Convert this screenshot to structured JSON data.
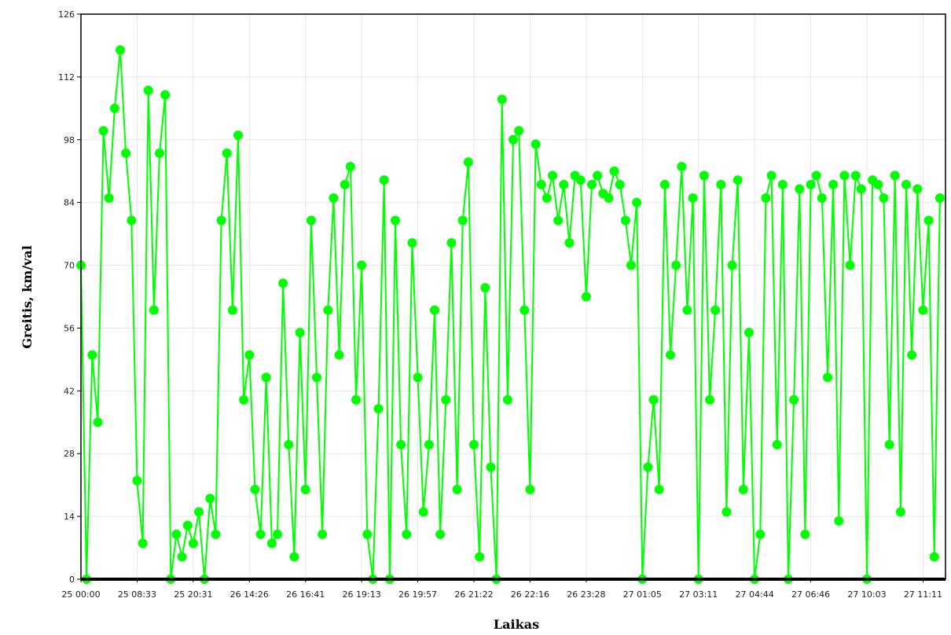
{
  "chart_data": {
    "type": "line",
    "x_label": "Laikas",
    "y_label": "Greitis, km/val",
    "color": "#00ff00",
    "grid": true,
    "ylim": [
      0,
      126
    ],
    "yticks": [
      0,
      14,
      28,
      42,
      56,
      70,
      84,
      98,
      112,
      126
    ],
    "categories": [
      "25 00:00",
      null,
      null,
      null,
      null,
      null,
      null,
      null,
      null,
      null,
      "25 08:33",
      null,
      null,
      null,
      null,
      null,
      null,
      null,
      null,
      null,
      "25 20:31",
      null,
      null,
      null,
      null,
      null,
      null,
      null,
      null,
      null,
      "26 14:26",
      null,
      null,
      null,
      null,
      null,
      null,
      null,
      null,
      null,
      "26 16:41",
      null,
      null,
      null,
      null,
      null,
      null,
      null,
      null,
      null,
      "26 19:13",
      null,
      null,
      null,
      null,
      null,
      null,
      null,
      null,
      null,
      "26 19:57",
      null,
      null,
      null,
      null,
      null,
      null,
      null,
      null,
      null,
      "26 21:22",
      null,
      null,
      null,
      null,
      null,
      null,
      null,
      null,
      null,
      "26 22:16",
      null,
      null,
      null,
      null,
      null,
      null,
      null,
      null,
      null,
      "26 23:28",
      null,
      null,
      null,
      null,
      null,
      null,
      null,
      null,
      null,
      "27 01:05",
      null,
      null,
      null,
      null,
      null,
      null,
      null,
      null,
      null,
      "27 03:11",
      null,
      null,
      null,
      null,
      null,
      null,
      null,
      null,
      null,
      "27 04:44",
      null,
      null,
      null,
      null,
      null,
      null,
      null,
      null,
      null,
      "27 06:46",
      null,
      null,
      null,
      null,
      null,
      null,
      null,
      null,
      null,
      "27 10:03",
      null,
      null,
      null,
      null,
      null,
      null,
      null,
      null,
      null,
      "27 11:11",
      null,
      null,
      null
    ],
    "values": [
      70,
      0,
      50,
      35,
      100,
      85,
      105,
      118,
      95,
      80,
      22,
      8,
      109,
      60,
      95,
      108,
      0,
      10,
      5,
      12,
      8,
      15,
      0,
      18,
      10,
      80,
      95,
      60,
      99,
      40,
      50,
      20,
      10,
      45,
      8,
      10,
      66,
      30,
      5,
      55,
      20,
      80,
      45,
      10,
      60,
      85,
      50,
      88,
      92,
      40,
      70,
      10,
      0,
      38,
      89,
      0,
      80,
      30,
      10,
      75,
      45,
      15,
      30,
      60,
      10,
      40,
      75,
      20,
      80,
      93,
      30,
      5,
      65,
      25,
      0,
      107,
      40,
      98,
      100,
      60,
      20,
      97,
      88,
      85,
      90,
      80,
      88,
      75,
      90,
      89,
      63,
      88,
      90,
      86,
      85,
      91,
      88,
      80,
      70,
      84,
      0,
      25,
      40,
      20,
      88,
      50,
      70,
      92,
      60,
      85,
      0,
      90,
      40,
      60,
      88,
      15,
      70,
      89,
      20,
      55,
      0,
      10,
      85,
      90,
      30,
      88,
      0,
      40,
      87,
      10,
      88,
      90,
      85,
      45,
      88,
      13,
      90,
      70,
      90,
      87,
      0,
      89,
      88,
      85,
      30,
      90,
      15,
      88,
      50,
      87,
      60,
      80,
      5,
      85
    ]
  }
}
